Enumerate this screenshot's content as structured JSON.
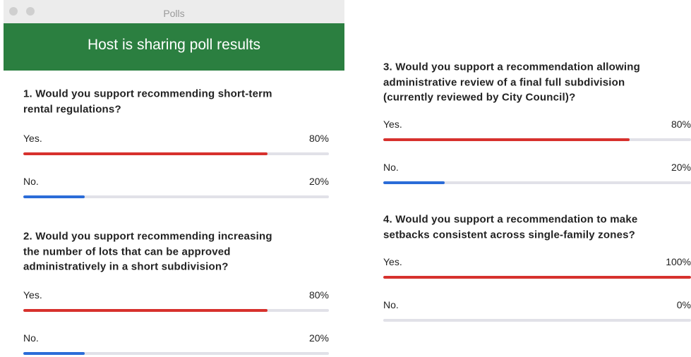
{
  "window": {
    "title": "Polls",
    "banner": "Host is sharing poll results"
  },
  "questions": [
    {
      "lines": [
        "1. Would you support recommending short-term",
        "rental regulations?"
      ],
      "options": [
        {
          "text": "Yes.",
          "value": 80,
          "label": "80%",
          "color": "#d7312d"
        },
        {
          "text": "No.",
          "value": 20,
          "label": "20%",
          "color": "#2b6cd8"
        }
      ]
    },
    {
      "lines": [
        "2. Would you support recommending increasing",
        "the number of lots that can be approved",
        "administratively in a short subdivision?"
      ],
      "options": [
        {
          "text": "Yes.",
          "value": 80,
          "label": "80%",
          "color": "#d7312d"
        },
        {
          "text": "No.",
          "value": 20,
          "label": "20%",
          "color": "#2b6cd8"
        }
      ]
    },
    {
      "lines": [
        "3. Would you support a recommendation allowing",
        "administrative review of a final full subdivision",
        "(currently reviewed by City Council)?"
      ],
      "options": [
        {
          "text": "Yes.",
          "value": 80,
          "label": "80%",
          "color": "#d7312d"
        },
        {
          "text": "No.",
          "value": 20,
          "label": "20%",
          "color": "#2b6cd8"
        }
      ]
    },
    {
      "lines": [
        "4. Would you support a recommendation to make",
        "setbacks consistent across single-family zones?"
      ],
      "options": [
        {
          "text": "Yes.",
          "value": 100,
          "label": "100%",
          "color": "#d7312d"
        },
        {
          "text": "No.",
          "value": 0,
          "label": "0%",
          "color": "#2b6cd8"
        }
      ]
    }
  ]
}
